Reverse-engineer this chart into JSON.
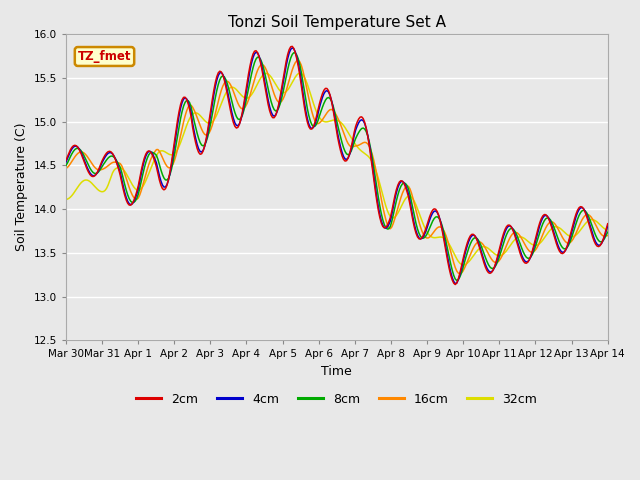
{
  "title": "Tonzi Soil Temperature Set A",
  "xlabel": "Time",
  "ylabel": "Soil Temperature (C)",
  "ylim": [
    12.5,
    16.0
  ],
  "xlim": [
    0,
    15
  ],
  "annotation_text": "TZ_fmet",
  "annotation_color": "#cc0000",
  "annotation_bg": "#ffffcc",
  "annotation_border": "#cc8800",
  "fig_bg_color": "#e8e8e8",
  "plot_bg_color": "#e8e8e8",
  "grid_color": "#ffffff",
  "line_colors": [
    "#dd0000",
    "#0000cc",
    "#00aa00",
    "#ff8800",
    "#dddd00"
  ],
  "line_labels": [
    "2cm",
    "4cm",
    "8cm",
    "16cm",
    "32cm"
  ],
  "tick_labels": [
    "Mar 30",
    "Mar 31",
    "Apr 1",
    "Apr 2",
    "Apr 3",
    "Apr 4",
    "Apr 5",
    "Apr 6",
    "Apr 7",
    "Apr 8",
    "Apr 9",
    "Apr 10",
    "Apr 11",
    "Apr 12",
    "Apr 13",
    "Apr 14"
  ],
  "yticks": [
    12.5,
    13.0,
    13.5,
    14.0,
    14.5,
    15.0,
    15.5,
    16.0
  ],
  "title_fontsize": 11,
  "axis_fontsize": 9,
  "tick_fontsize": 7.5,
  "legend_fontsize": 9,
  "line_width": 1.1
}
